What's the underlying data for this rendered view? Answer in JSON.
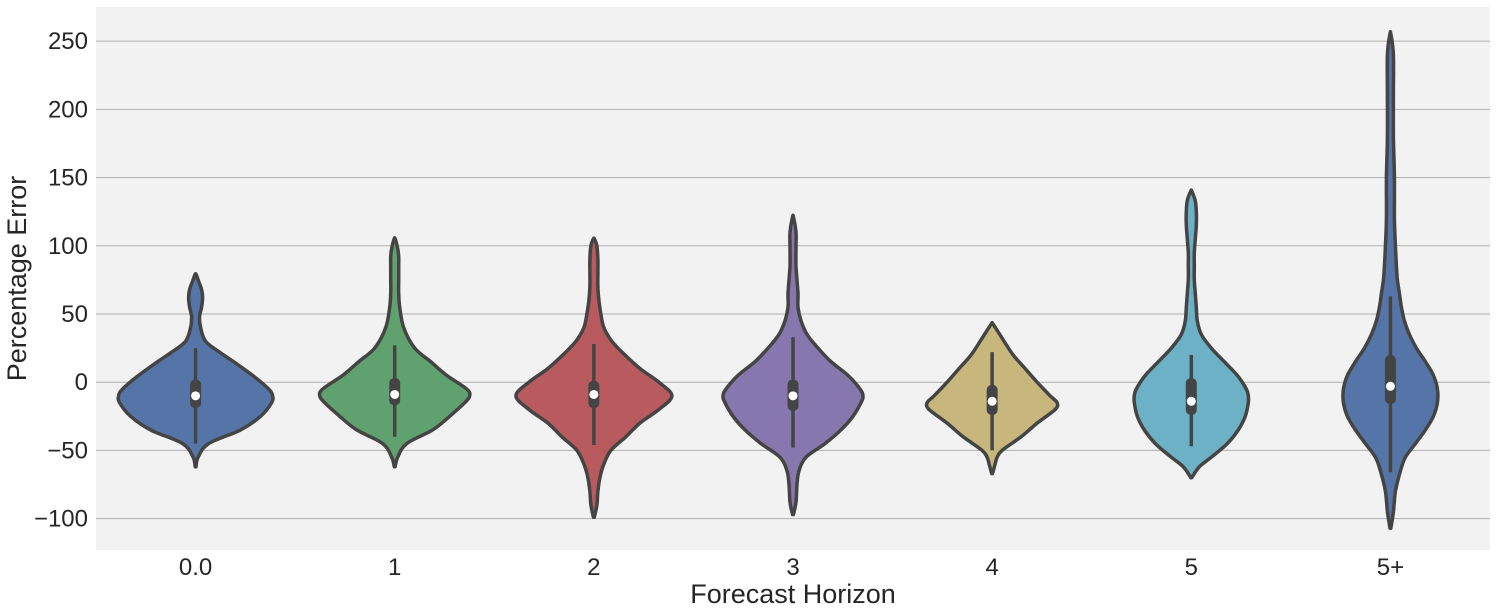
{
  "chart_data": {
    "type": "violin",
    "title": "",
    "xlabel": "Forecast Horizon",
    "ylabel": "Percentage Error",
    "ylim": [
      -123,
      275
    ],
    "yticks": [
      -100,
      -50,
      0,
      50,
      100,
      150,
      200,
      250
    ],
    "ytick_labels": [
      "−100",
      "−50",
      "0",
      "50",
      "100",
      "150",
      "200",
      "250"
    ],
    "grid": "horizontal",
    "background": "#f2f2f2",
    "categories": [
      "0.0",
      "1",
      "2",
      "3",
      "4",
      "5",
      "5+"
    ],
    "series": [
      {
        "category": "0.0",
        "color": "#5575a8",
        "median": -10,
        "q1": -19,
        "q3": 2,
        "whisker_low": -45,
        "whisker_high": 25,
        "profile": [
          [
            -62,
            0.4
          ],
          [
            -55,
            2.5
          ],
          [
            -45,
            13
          ],
          [
            -35,
            45
          ],
          [
            -25,
            65
          ],
          [
            -15,
            76
          ],
          [
            -10,
            77
          ],
          [
            -5,
            73
          ],
          [
            5,
            57
          ],
          [
            15,
            38
          ],
          [
            22,
            24
          ],
          [
            30,
            10
          ],
          [
            40,
            5
          ],
          [
            48,
            4
          ],
          [
            55,
            6
          ],
          [
            62,
            7
          ],
          [
            68,
            6
          ],
          [
            74,
            3
          ],
          [
            79,
            0.5
          ]
        ]
      },
      {
        "category": "1",
        "color": "#5fa26f",
        "median": -9,
        "q1": -17,
        "q3": 3,
        "whisker_low": -40,
        "whisker_high": 27,
        "profile": [
          [
            -62,
            0.4
          ],
          [
            -55,
            3
          ],
          [
            -45,
            12
          ],
          [
            -35,
            38
          ],
          [
            -25,
            55
          ],
          [
            -15,
            70
          ],
          [
            -10,
            75
          ],
          [
            -5,
            72
          ],
          [
            5,
            52
          ],
          [
            15,
            36
          ],
          [
            25,
            20
          ],
          [
            40,
            9
          ],
          [
            55,
            5
          ],
          [
            65,
            4
          ],
          [
            75,
            4
          ],
          [
            85,
            4
          ],
          [
            92,
            4
          ],
          [
            98,
            3
          ],
          [
            105,
            0.5
          ]
        ]
      },
      {
        "category": "2",
        "color": "#b95b5e",
        "median": -9,
        "q1": -19,
        "q3": 1,
        "whisker_low": -46,
        "whisker_high": 28,
        "profile": [
          [
            -99,
            0.4
          ],
          [
            -90,
            3
          ],
          [
            -80,
            4
          ],
          [
            -70,
            6
          ],
          [
            -60,
            10
          ],
          [
            -50,
            17
          ],
          [
            -40,
            32
          ],
          [
            -30,
            46
          ],
          [
            -20,
            65
          ],
          [
            -10,
            78
          ],
          [
            0,
            65
          ],
          [
            10,
            46
          ],
          [
            20,
            31
          ],
          [
            30,
            18
          ],
          [
            40,
            10
          ],
          [
            50,
            7
          ],
          [
            60,
            5
          ],
          [
            70,
            4
          ],
          [
            80,
            4
          ],
          [
            90,
            4
          ],
          [
            100,
            3
          ],
          [
            105,
            0.5
          ]
        ]
      },
      {
        "category": "3",
        "color": "#8678af",
        "median": -10,
        "q1": -21,
        "q3": 2,
        "whisker_low": -48,
        "whisker_high": 33,
        "profile": [
          [
            -97,
            0.4
          ],
          [
            -88,
            3
          ],
          [
            -75,
            4
          ],
          [
            -65,
            6
          ],
          [
            -55,
            13
          ],
          [
            -45,
            32
          ],
          [
            -35,
            48
          ],
          [
            -25,
            60
          ],
          [
            -15,
            68
          ],
          [
            -10,
            70
          ],
          [
            -5,
            67
          ],
          [
            5,
            55
          ],
          [
            15,
            38
          ],
          [
            25,
            25
          ],
          [
            35,
            14
          ],
          [
            45,
            8
          ],
          [
            55,
            5
          ],
          [
            65,
            5
          ],
          [
            75,
            4
          ],
          [
            85,
            3
          ],
          [
            100,
            3
          ],
          [
            110,
            3
          ],
          [
            121,
            0.5
          ]
        ]
      },
      {
        "category": "4",
        "color": "#c7b77d",
        "median": -14,
        "q1": -24,
        "q3": -2,
        "whisker_low": -50,
        "whisker_high": 22,
        "profile": [
          [
            -67,
            0.4
          ],
          [
            -60,
            3
          ],
          [
            -55,
            5
          ],
          [
            -50,
            10
          ],
          [
            -40,
            29
          ],
          [
            -30,
            45
          ],
          [
            -20,
            63
          ],
          [
            -15,
            65
          ],
          [
            -10,
            58
          ],
          [
            0,
            45
          ],
          [
            10,
            33
          ],
          [
            20,
            21
          ],
          [
            30,
            12
          ],
          [
            38,
            5
          ],
          [
            43,
            0.5
          ]
        ]
      },
      {
        "category": "5",
        "color": "#6cb1c6",
        "median": -14,
        "q1": -24,
        "q3": 3,
        "whisker_low": -47,
        "whisker_high": 20,
        "profile": [
          [
            -70,
            0.4
          ],
          [
            -62,
            8
          ],
          [
            -55,
            20
          ],
          [
            -45,
            36
          ],
          [
            -35,
            47
          ],
          [
            -25,
            54
          ],
          [
            -15,
            57
          ],
          [
            -10,
            57
          ],
          [
            -5,
            55
          ],
          [
            5,
            46
          ],
          [
            15,
            33
          ],
          [
            25,
            20
          ],
          [
            35,
            10
          ],
          [
            45,
            6
          ],
          [
            55,
            5
          ],
          [
            65,
            4
          ],
          [
            75,
            3
          ],
          [
            85,
            3
          ],
          [
            95,
            3
          ],
          [
            105,
            4
          ],
          [
            115,
            5
          ],
          [
            125,
            5
          ],
          [
            133,
            4
          ],
          [
            140,
            0.5
          ]
        ]
      },
      {
        "category": "5+",
        "color": "#5575a8",
        "median": -3,
        "q1": -16,
        "q3": 20,
        "whisker_low": -66,
        "whisker_high": 63,
        "profile": [
          [
            -107,
            0.4
          ],
          [
            -95,
            3
          ],
          [
            -80,
            5
          ],
          [
            -65,
            10
          ],
          [
            -55,
            15
          ],
          [
            -45,
            25
          ],
          [
            -35,
            35
          ],
          [
            -25,
            43
          ],
          [
            -15,
            47
          ],
          [
            -5,
            47
          ],
          [
            5,
            43
          ],
          [
            15,
            35
          ],
          [
            25,
            26
          ],
          [
            35,
            19
          ],
          [
            45,
            14
          ],
          [
            55,
            11
          ],
          [
            65,
            9
          ],
          [
            75,
            7
          ],
          [
            85,
            6
          ],
          [
            100,
            5
          ],
          [
            120,
            4
          ],
          [
            150,
            4
          ],
          [
            180,
            3
          ],
          [
            210,
            3
          ],
          [
            240,
            3
          ],
          [
            255,
            0.5
          ]
        ]
      }
    ]
  }
}
